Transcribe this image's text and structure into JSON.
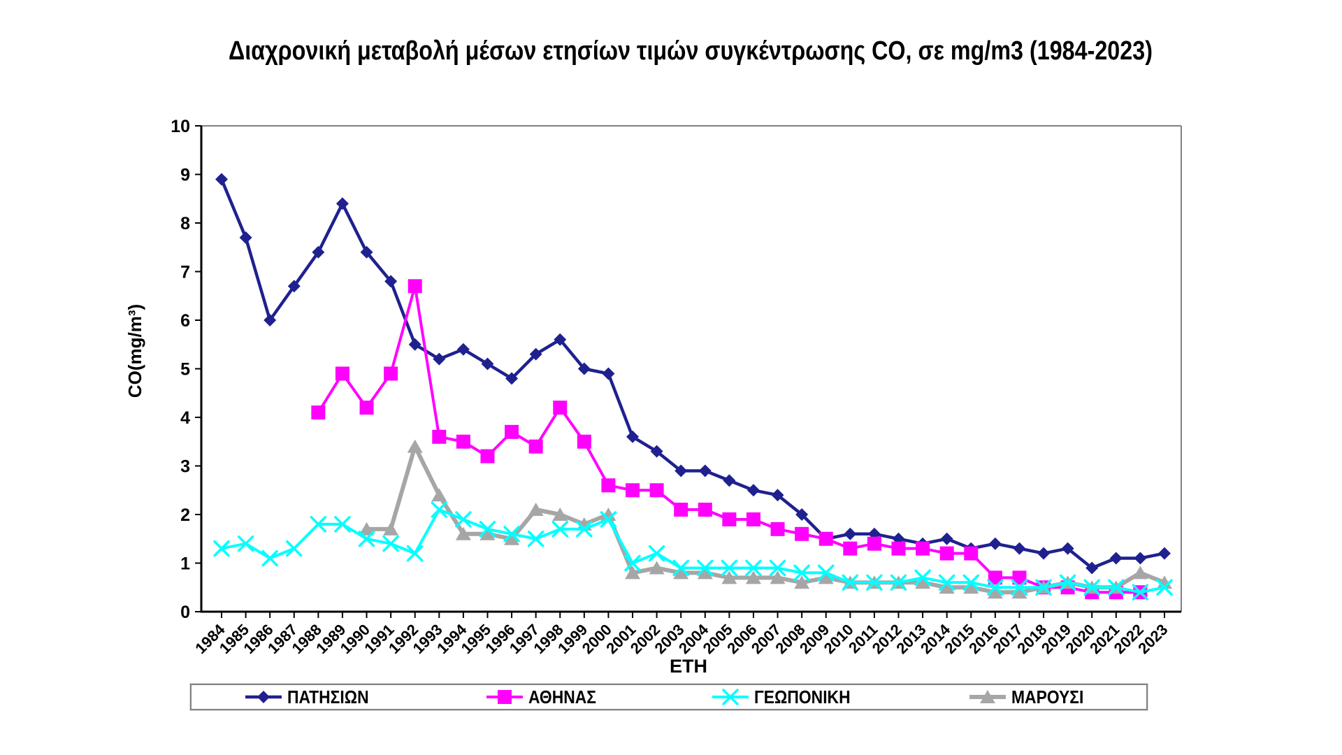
{
  "title": "Διαχρονική μεταβολή μέσων ετησίων τιμών συγκέντρωσης CO, σε mg/m3 (1984-2023)",
  "chart_data": {
    "type": "line",
    "title": "Διαχρονική μεταβολή μέσων ετησίων τιμών συγκέντρωσης CO, σε mg/m3 (1984-2023)",
    "xlabel": "ΕΤΗ",
    "ylabel": "CO(mg/m³)",
    "ylim": [
      0,
      10
    ],
    "ytick_step": 1,
    "grid": false,
    "legend_position": "bottom",
    "categories": [
      "1984",
      "1985",
      "1986",
      "1987",
      "1988",
      "1989",
      "1990",
      "1991",
      "1992",
      "1993",
      "1994",
      "1995",
      "1996",
      "1997",
      "1998",
      "1999",
      "2000",
      "2001",
      "2002",
      "2003",
      "2004",
      "2005",
      "2006",
      "2007",
      "2008",
      "2009",
      "2010",
      "2011",
      "2012",
      "2013",
      "2014",
      "2015",
      "2016",
      "2017",
      "2018",
      "2019",
      "2020",
      "2021",
      "2022",
      "2023"
    ],
    "series": [
      {
        "name": "ΠΑΤΗΣΙΩΝ",
        "color": "#1F218F",
        "marker": "diamond",
        "values": [
          8.9,
          7.7,
          6.0,
          6.7,
          7.4,
          8.4,
          7.4,
          6.8,
          5.5,
          5.2,
          5.4,
          5.1,
          4.8,
          5.3,
          5.6,
          5.0,
          4.9,
          3.6,
          3.3,
          2.9,
          2.9,
          2.7,
          2.5,
          2.4,
          2.0,
          1.5,
          1.6,
          1.6,
          1.5,
          1.4,
          1.5,
          1.3,
          1.4,
          1.3,
          1.2,
          1.3,
          0.9,
          1.1,
          1.1,
          1.2
        ]
      },
      {
        "name": "ΑΘΗΝΑΣ",
        "color": "#FF00FF",
        "marker": "square",
        "values": [
          null,
          null,
          null,
          null,
          4.1,
          4.9,
          4.2,
          4.9,
          6.7,
          3.6,
          3.5,
          3.2,
          3.7,
          3.4,
          4.2,
          3.5,
          2.6,
          2.5,
          2.5,
          2.1,
          2.1,
          1.9,
          1.9,
          1.7,
          1.6,
          1.5,
          1.3,
          1.4,
          1.3,
          1.3,
          1.2,
          1.2,
          0.7,
          0.7,
          0.5,
          0.5,
          0.4,
          0.4,
          0.4,
          null
        ]
      },
      {
        "name": "ΜΑΡΟΥΣΙ",
        "color": "#A6A6A6",
        "marker": "triangle",
        "values": [
          null,
          null,
          null,
          null,
          null,
          null,
          1.7,
          1.7,
          3.4,
          2.4,
          1.6,
          1.6,
          1.5,
          2.1,
          2.0,
          1.8,
          2.0,
          0.8,
          0.9,
          0.8,
          0.8,
          0.7,
          0.7,
          0.7,
          0.6,
          0.7,
          0.6,
          0.6,
          0.6,
          0.6,
          0.5,
          0.5,
          0.4,
          0.4,
          0.5,
          0.6,
          0.5,
          0.5,
          0.8,
          0.6
        ]
      },
      {
        "name": "ΓΕΩΠΟΝΙΚΗ",
        "color": "#00FFFF",
        "marker": "x",
        "values": [
          1.3,
          1.4,
          1.1,
          1.3,
          1.8,
          1.8,
          1.5,
          1.4,
          1.2,
          2.1,
          1.9,
          1.7,
          1.6,
          1.5,
          1.7,
          1.7,
          1.9,
          1.0,
          1.2,
          0.9,
          0.9,
          0.9,
          0.9,
          0.9,
          0.8,
          0.8,
          0.6,
          0.6,
          0.6,
          0.7,
          0.6,
          0.6,
          0.5,
          0.5,
          0.5,
          0.6,
          0.5,
          0.5,
          0.4,
          0.5
        ]
      }
    ],
    "legend_order": [
      "ΠΑΤΗΣΙΩΝ",
      "ΑΘΗΝΑΣ",
      "ΓΕΩΠΟΝΙΚΗ",
      "ΜΑΡΟΥΣΙ"
    ],
    "colors": {
      "axis": "#000000",
      "plot_border": "#808080",
      "text": "#000000"
    }
  }
}
